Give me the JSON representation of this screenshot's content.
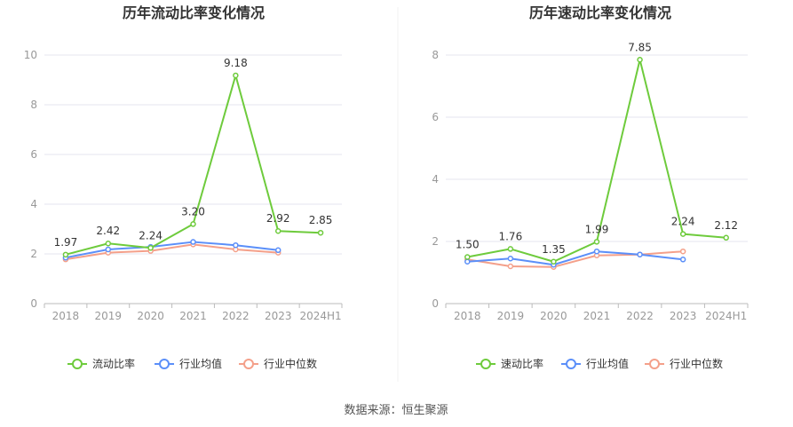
{
  "chart_data": [
    {
      "type": "line",
      "title": "历年流动比率变化情况",
      "categories": [
        "2018",
        "2019",
        "2020",
        "2021",
        "2022",
        "2023",
        "2024H1"
      ],
      "ylim": [
        0,
        10
      ],
      "yticks": [
        0,
        2,
        4,
        6,
        8,
        10
      ],
      "grid": true,
      "legend_position": "bottom",
      "series": [
        {
          "name": "流动比率",
          "color": "#6ecb3c",
          "values": [
            1.97,
            2.42,
            2.24,
            3.2,
            9.18,
            2.92,
            2.85
          ],
          "labels": [
            "1.97",
            "2.42",
            "2.24",
            "3.20",
            "9.18",
            "2.92",
            "2.85"
          ]
        },
        {
          "name": "行业均值",
          "color": "#5b8ff9",
          "values": [
            1.85,
            2.18,
            2.28,
            2.48,
            2.35,
            2.15,
            null
          ]
        },
        {
          "name": "行业中位数",
          "color": "#f4a08a",
          "values": [
            1.78,
            2.05,
            2.12,
            2.38,
            2.18,
            2.05,
            null
          ]
        }
      ]
    },
    {
      "type": "line",
      "title": "历年速动比率变化情况",
      "categories": [
        "2018",
        "2019",
        "2020",
        "2021",
        "2022",
        "2023",
        "2024H1"
      ],
      "ylim": [
        0,
        8
      ],
      "yticks": [
        0,
        2,
        4,
        6,
        8
      ],
      "grid": true,
      "legend_position": "bottom",
      "series": [
        {
          "name": "速动比率",
          "color": "#6ecb3c",
          "values": [
            1.5,
            1.76,
            1.35,
            1.99,
            7.85,
            2.24,
            2.12
          ],
          "labels": [
            "1.50",
            "1.76",
            "1.35",
            "1.99",
            "7.85",
            "2.24",
            "2.12"
          ]
        },
        {
          "name": "行业均值",
          "color": "#5b8ff9",
          "values": [
            1.35,
            1.45,
            1.25,
            1.68,
            1.58,
            1.42,
            null
          ]
        },
        {
          "name": "行业中位数",
          "color": "#f4a08a",
          "values": [
            1.42,
            1.2,
            1.18,
            1.55,
            1.58,
            1.68,
            null
          ]
        }
      ]
    }
  ],
  "source": "数据来源：恒生聚源"
}
